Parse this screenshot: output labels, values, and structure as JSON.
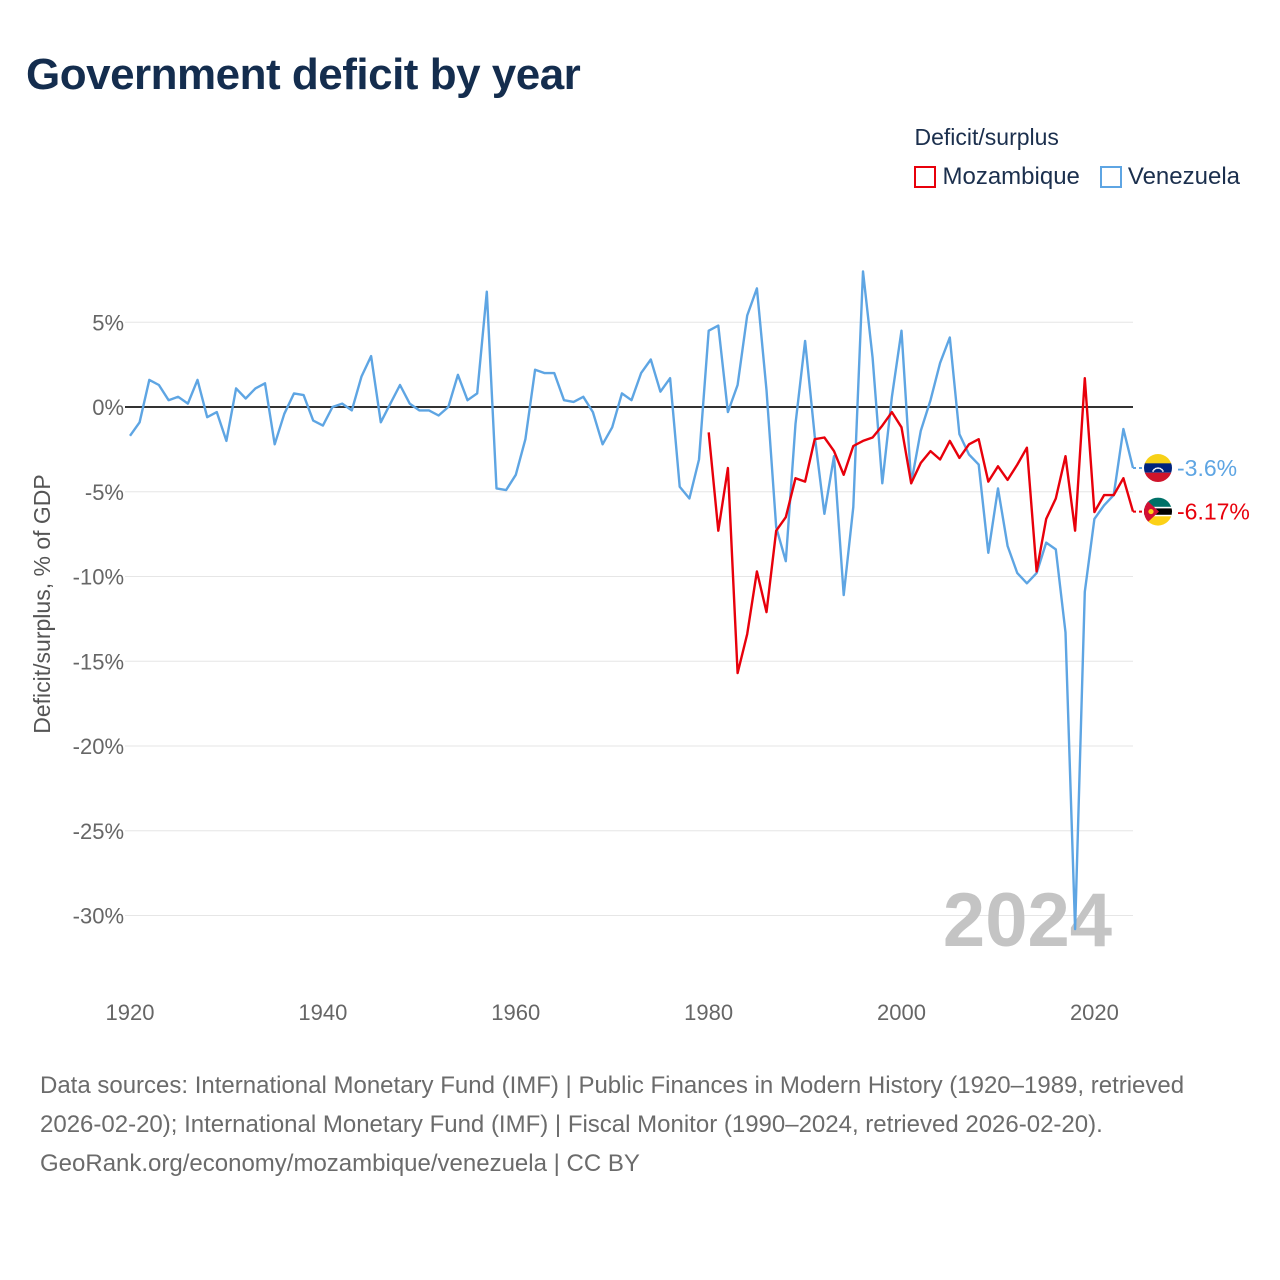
{
  "title": "Government deficit by year",
  "legend": {
    "title": "Deficit/surplus",
    "items": [
      {
        "name": "Mozambique",
        "color": "#e8000b"
      },
      {
        "name": "Venezuela",
        "color": "#5ea5e3"
      }
    ]
  },
  "chart_data": {
    "type": "line",
    "ylabel": "Deficit/surplus, % of GDP",
    "xlabel": "",
    "xlim": [
      1920,
      2024
    ],
    "ylim": [
      -32,
      8.5
    ],
    "x_ticks": [
      1920,
      1940,
      1960,
      1980,
      2000,
      2020
    ],
    "x_tick_labels": [
      "1920",
      "1940",
      "1960",
      "1980",
      "2000",
      "2020"
    ],
    "y_ticks": [
      5,
      0,
      -5,
      -10,
      -15,
      -20,
      -25,
      -30
    ],
    "y_tick_labels": [
      "5%",
      "0%",
      "-5%",
      "-10%",
      "-15%",
      "-20%",
      "-25%",
      "-30%"
    ],
    "year_watermark": "2024",
    "series": [
      {
        "name": "Mozambique",
        "color": "#e8000b",
        "end_label": "-6.17%",
        "flag": "mozambique-flag",
        "x": [
          1980,
          1981,
          1982,
          1983,
          1984,
          1985,
          1986,
          1987,
          1988,
          1989,
          1990,
          1991,
          1992,
          1993,
          1994,
          1995,
          1996,
          1997,
          1998,
          1999,
          2000,
          2001,
          2002,
          2003,
          2004,
          2005,
          2006,
          2007,
          2008,
          2009,
          2010,
          2011,
          2012,
          2013,
          2014,
          2015,
          2016,
          2017,
          2018,
          2019,
          2020,
          2021,
          2022,
          2023,
          2024
        ],
        "values": [
          -1.5,
          -7.3,
          -3.6,
          -15.7,
          -13.4,
          -9.7,
          -12.1,
          -7.3,
          -6.5,
          -4.2,
          -4.4,
          -1.9,
          -1.8,
          -2.6,
          -4.0,
          -2.3,
          -2.0,
          -1.8,
          -1.1,
          -0.3,
          -1.2,
          -4.5,
          -3.3,
          -2.6,
          -3.1,
          -2.0,
          -3.0,
          -2.2,
          -1.9,
          -4.4,
          -3.5,
          -4.3,
          -3.4,
          -2.4,
          -9.7,
          -6.6,
          -5.4,
          -2.9,
          -7.3,
          1.7,
          -6.2,
          -5.2,
          -5.2,
          -4.2,
          -6.17
        ]
      },
      {
        "name": "Venezuela",
        "color": "#5ea5e3",
        "end_label": "-3.6%",
        "flag": "venezuela-flag",
        "x": [
          1920,
          1921,
          1922,
          1923,
          1924,
          1925,
          1926,
          1927,
          1928,
          1929,
          1930,
          1931,
          1932,
          1933,
          1934,
          1935,
          1936,
          1937,
          1938,
          1939,
          1940,
          1941,
          1942,
          1943,
          1944,
          1945,
          1946,
          1947,
          1948,
          1949,
          1950,
          1951,
          1952,
          1953,
          1954,
          1955,
          1956,
          1957,
          1958,
          1959,
          1960,
          1961,
          1962,
          1963,
          1964,
          1965,
          1966,
          1967,
          1968,
          1969,
          1970,
          1971,
          1972,
          1973,
          1974,
          1975,
          1976,
          1977,
          1978,
          1979,
          1980,
          1981,
          1982,
          1983,
          1984,
          1985,
          1986,
          1987,
          1988,
          1989,
          1990,
          1991,
          1992,
          1993,
          1994,
          1995,
          1996,
          1997,
          1998,
          1999,
          2000,
          2001,
          2002,
          2003,
          2004,
          2005,
          2006,
          2007,
          2008,
          2009,
          2010,
          2011,
          2012,
          2013,
          2014,
          2015,
          2016,
          2017,
          2018,
          2019,
          2020,
          2021,
          2022,
          2023,
          2024
        ],
        "values": [
          -1.7,
          -0.9,
          1.6,
          1.3,
          0.4,
          0.6,
          0.2,
          1.6,
          -0.6,
          -0.3,
          -2.0,
          1.1,
          0.5,
          1.1,
          1.4,
          -2.2,
          -0.4,
          0.8,
          0.7,
          -0.8,
          -1.1,
          0.0,
          0.2,
          -0.2,
          1.8,
          3.0,
          -0.9,
          0.2,
          1.3,
          0.2,
          -0.2,
          -0.2,
          -0.5,
          0.0,
          1.9,
          0.4,
          0.8,
          6.8,
          -4.8,
          -4.9,
          -4.0,
          -1.9,
          2.2,
          2.0,
          2.0,
          0.4,
          0.3,
          0.6,
          -0.3,
          -2.2,
          -1.2,
          0.8,
          0.4,
          2.0,
          2.8,
          0.9,
          1.7,
          -4.7,
          -5.4,
          -3.1,
          4.5,
          4.8,
          -0.3,
          1.3,
          5.4,
          7.0,
          1.0,
          -7.1,
          -9.1,
          -1.0,
          3.9,
          -1.7,
          -6.3,
          -2.9,
          -11.1,
          -5.9,
          8.0,
          2.9,
          -4.5,
          0.6,
          4.5,
          -4.5,
          -1.4,
          0.4,
          2.6,
          4.1,
          -1.6,
          -2.8,
          -3.4,
          -8.6,
          -4.8,
          -8.2,
          -9.8,
          -10.4,
          -9.8,
          -8.0,
          -8.4,
          -13.3,
          -30.8,
          -10.9,
          -6.6,
          -5.8,
          -5.2,
          -1.3,
          -3.6
        ]
      }
    ]
  },
  "footer": {
    "sources": "Data sources: International Monetary Fund (IMF) | Public Finances in Modern History (1920–1989, retrieved 2026-02-20); International Monetary Fund (IMF) | Fiscal Monitor (1990–2024, retrieved 2026-02-20).",
    "credit": "GeoRank.org/economy/mozambique/venezuela | CC BY"
  }
}
